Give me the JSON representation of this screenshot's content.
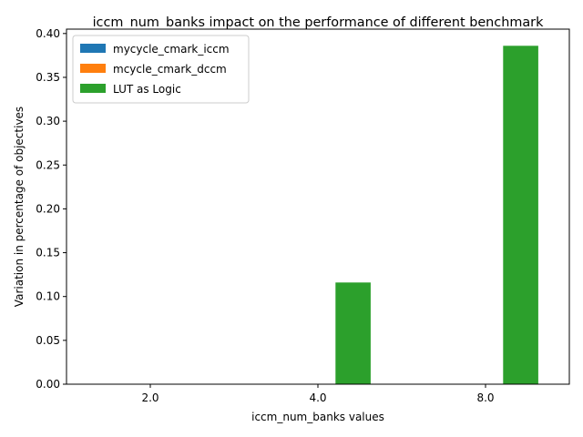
{
  "chart_data": {
    "type": "bar",
    "title": "iccm_num_banks impact on the performance of different benchmark",
    "xlabel": "iccm_num_banks values",
    "ylabel": "Variation in percentage of objectives",
    "categories": [
      "2.0",
      "4.0",
      "8.0"
    ],
    "series": [
      {
        "name": "mycycle_cmark_iccm",
        "color": "#1f77b4",
        "values": [
          0,
          0,
          0
        ]
      },
      {
        "name": "mcycle_cmark_dccm",
        "color": "#ff7f0e",
        "values": [
          0,
          0,
          0
        ]
      },
      {
        "name": "LUT as Logic",
        "color": "#2ca02c",
        "values": [
          0,
          0.116,
          0.386
        ]
      }
    ],
    "ylim": [
      0,
      0.405
    ],
    "yticks": [
      "0.00",
      "0.05",
      "0.10",
      "0.15",
      "0.20",
      "0.25",
      "0.30",
      "0.35",
      "0.40"
    ],
    "grid": false,
    "legend": "top-left"
  }
}
